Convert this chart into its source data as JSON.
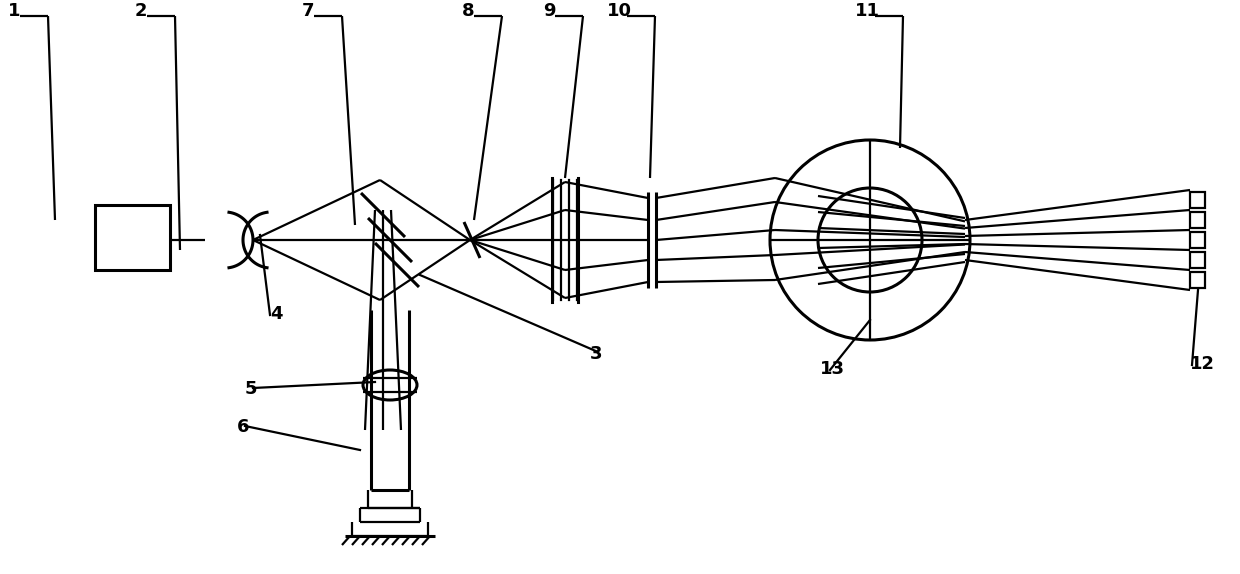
{
  "background": "#ffffff",
  "line_color": "#000000",
  "lw": 1.6,
  "lw2": 2.2,
  "fig_width": 12.4,
  "fig_height": 5.74
}
